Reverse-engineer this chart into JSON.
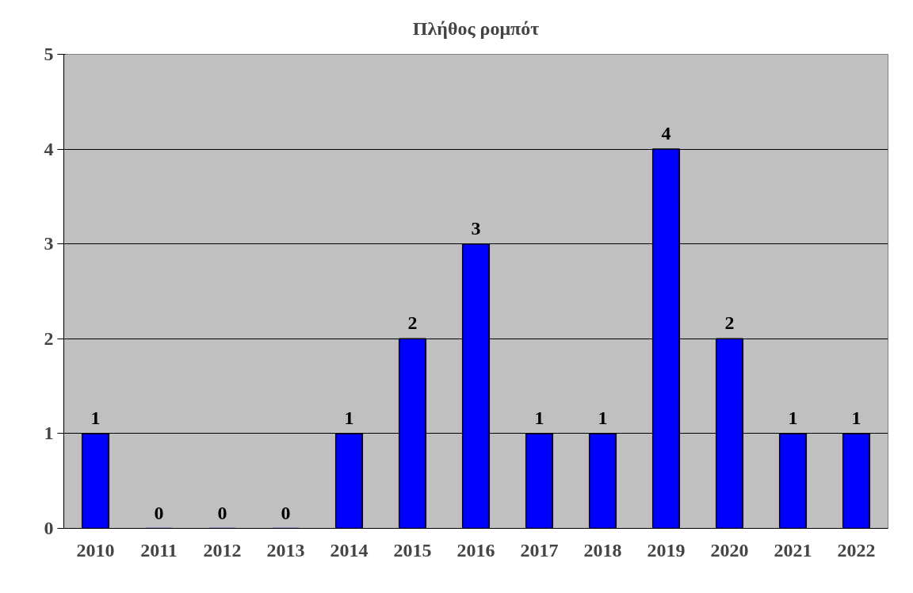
{
  "chart_data": {
    "type": "bar",
    "title": "Πλήθος ρομπότ",
    "categories": [
      "2010",
      "2011",
      "2012",
      "2013",
      "2014",
      "2015",
      "2016",
      "2017",
      "2018",
      "2019",
      "2020",
      "2021",
      "2022"
    ],
    "values": [
      1,
      0,
      0,
      0,
      1,
      2,
      3,
      1,
      1,
      4,
      2,
      1,
      1
    ],
    "color": "#0000ff",
    "ylim": [
      0,
      5
    ],
    "yticks": [
      0,
      1,
      2,
      3,
      4,
      5
    ],
    "grid": "y",
    "data_labels": true
  }
}
